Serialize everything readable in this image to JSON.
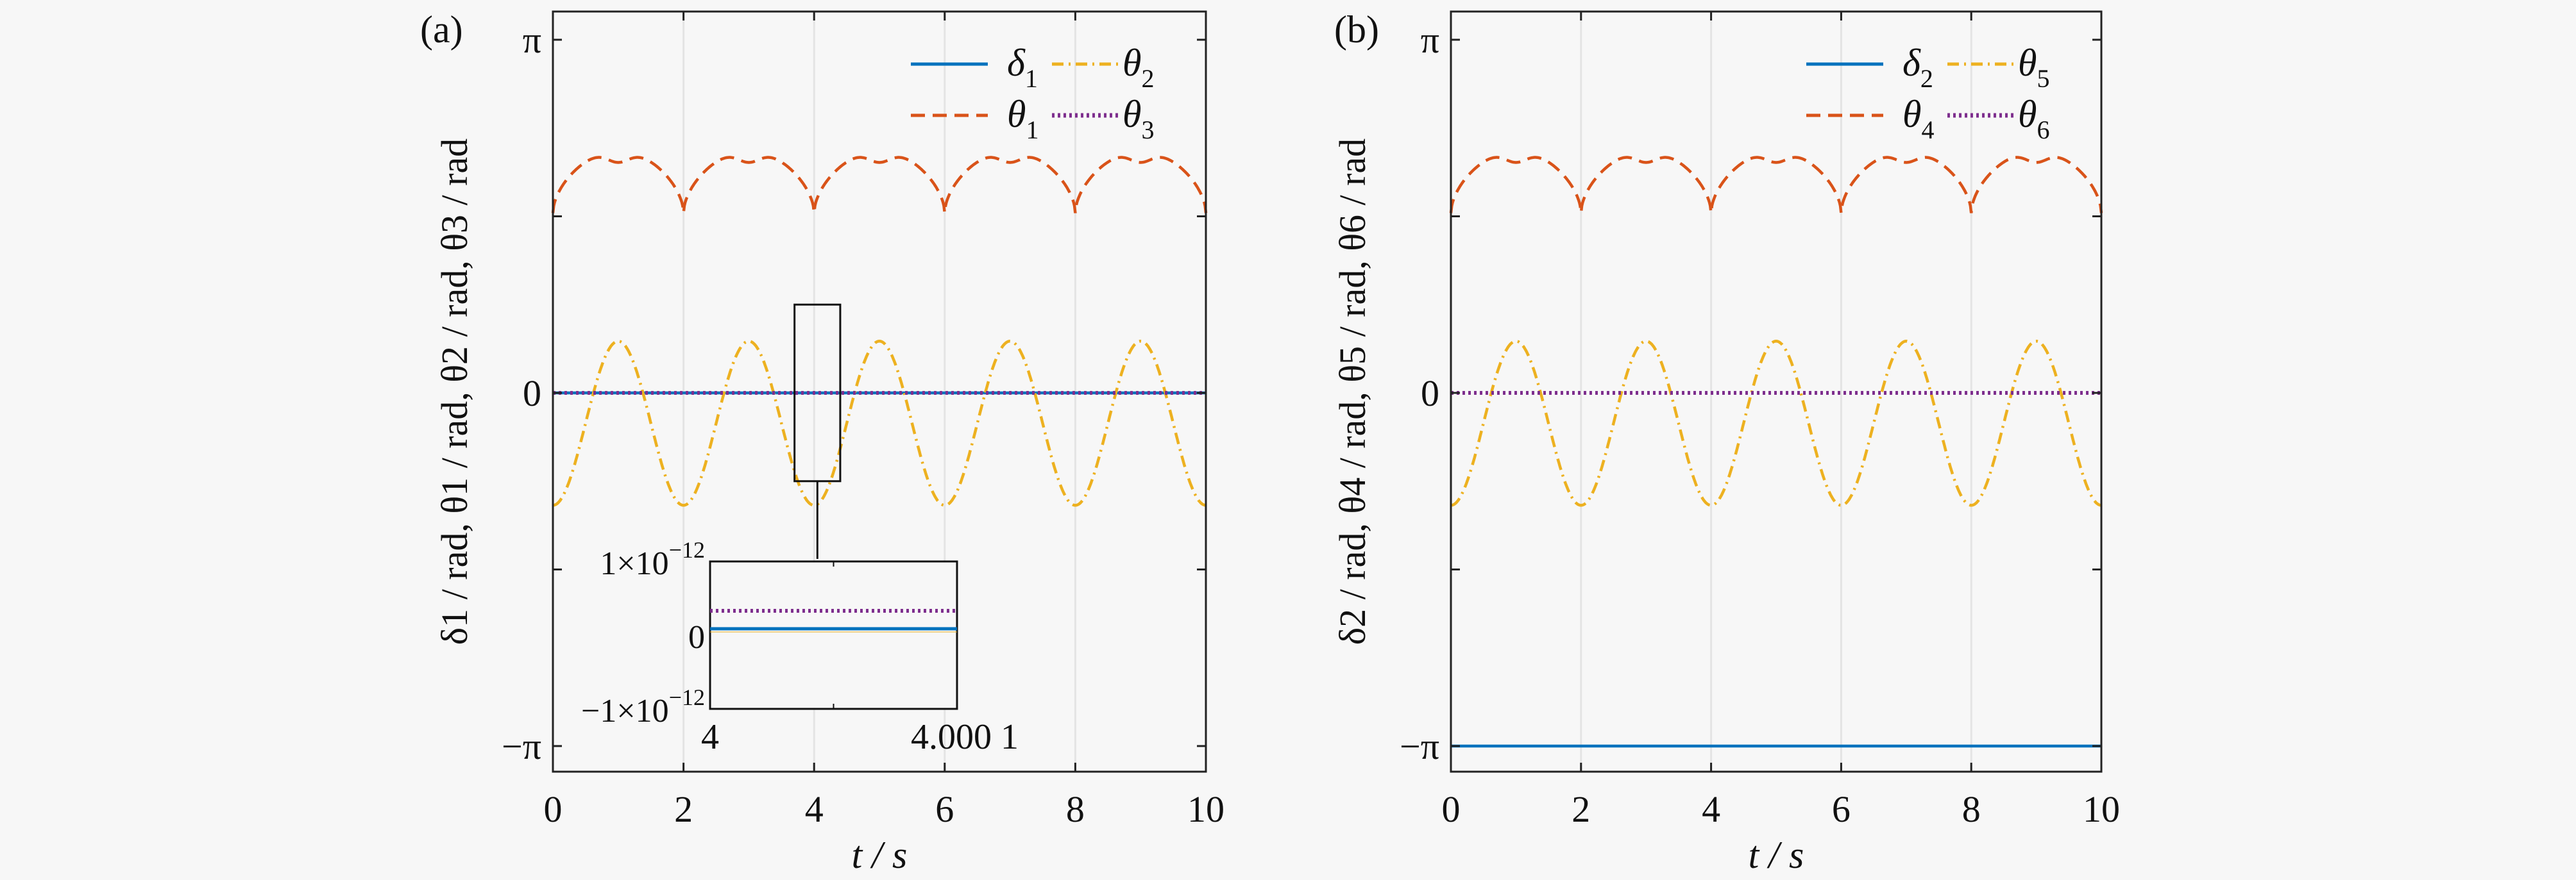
{
  "chart_data": [
    {
      "type": "line",
      "panel_label": "(a)",
      "xlabel": "t / s",
      "ylabel": "δ1 / rad, θ1 / rad, θ2 / rad, θ3 / rad",
      "xlim": [
        0,
        10
      ],
      "ylim_in_pi": [
        -1.1,
        1.07
      ],
      "xticks": [
        0,
        2,
        4,
        6,
        8,
        10
      ],
      "yticks": [
        {
          "value_in_pi": 1,
          "label": "π"
        },
        {
          "value_in_pi": 0,
          "label": "0"
        },
        {
          "value_in_pi": -1,
          "label": "−π"
        }
      ],
      "grid": true,
      "legend": {
        "placement": "top-right",
        "columns": 2,
        "entries": [
          "δ1",
          "θ2",
          "θ1",
          "θ3"
        ]
      },
      "series": [
        {
          "name": "δ1",
          "sub": "1",
          "sym": "δ",
          "style": "solid",
          "color": "#0072bd",
          "kind": "constant",
          "value": 0
        },
        {
          "name": "θ1",
          "sub": "1",
          "sym": "θ",
          "style": "dashed",
          "color": "#d95319",
          "kind": "theta_a",
          "period": 2,
          "min": 1.6,
          "max": 2.15,
          "mid_dip": 2.05
        },
        {
          "name": "θ2",
          "sub": "2",
          "sym": "θ",
          "style": "dashdot",
          "color": "#edb120",
          "kind": "cos",
          "period": 2,
          "min": -1.0,
          "max": 0.46
        },
        {
          "name": "θ3",
          "sub": "3",
          "sym": "θ",
          "style": "dotted",
          "color": "#7e2f8e",
          "kind": "constant",
          "value": 0
        }
      ],
      "inset": {
        "xlim": [
          4,
          4.0001
        ],
        "xtick_labels": [
          "4",
          "4.000 1"
        ],
        "ytick_labels": [
          {
            "mant": "1×10",
            "exp": "−12"
          },
          {
            "mant": "0",
            "exp": ""
          },
          {
            "mant": "−1×10",
            "exp": "−12"
          }
        ],
        "ylim": [
          -1e-12,
          1e-12
        ],
        "zoom_box_x": [
          3.7,
          4.4
        ],
        "zoom_box_y": [
          -0.25,
          0.25
        ]
      }
    },
    {
      "type": "line",
      "panel_label": "(b)",
      "xlabel": "t / s",
      "ylabel": "δ2 / rad, θ4 / rad, θ5 / rad, θ6 / rad",
      "xlim": [
        0,
        10
      ],
      "ylim_in_pi": [
        -1.1,
        1.07
      ],
      "xticks": [
        0,
        2,
        4,
        6,
        8,
        10
      ],
      "yticks": [
        {
          "value_in_pi": 1,
          "label": "π"
        },
        {
          "value_in_pi": 0,
          "label": "0"
        },
        {
          "value_in_pi": -1,
          "label": "−π"
        }
      ],
      "grid": true,
      "legend": {
        "placement": "top-right",
        "columns": 2,
        "entries": [
          "δ2",
          "θ5",
          "θ4",
          "θ6"
        ]
      },
      "series": [
        {
          "name": "δ2",
          "sub": "2",
          "sym": "δ",
          "style": "solid",
          "color": "#0072bd",
          "kind": "constant",
          "value": -3.14159
        },
        {
          "name": "θ4",
          "sub": "4",
          "sym": "θ",
          "style": "dashed",
          "color": "#d95319",
          "kind": "theta_a",
          "period": 2,
          "min": 1.6,
          "max": 2.15,
          "mid_dip": 2.05
        },
        {
          "name": "θ5",
          "sub": "5",
          "sym": "θ",
          "style": "dashdot",
          "color": "#edb120",
          "kind": "cos",
          "period": 2,
          "min": -1.0,
          "max": 0.46
        },
        {
          "name": "θ6",
          "sub": "6",
          "sym": "θ",
          "style": "dotted",
          "color": "#7e2f8e",
          "kind": "constant",
          "value": 0
        }
      ]
    }
  ]
}
